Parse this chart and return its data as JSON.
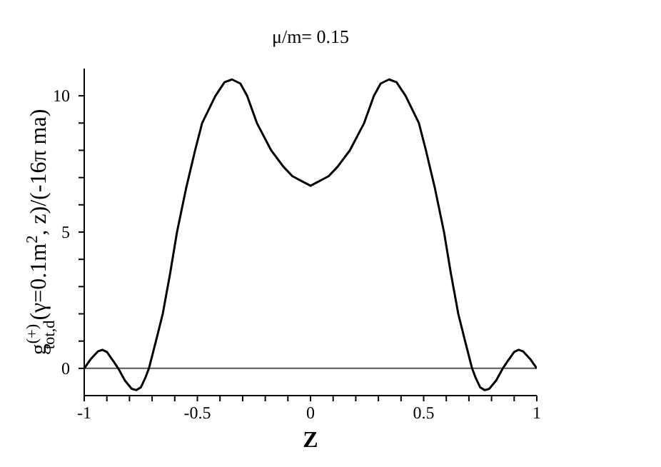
{
  "chart_data": {
    "type": "line",
    "title": "μ/m= 0.15",
    "xlabel": "Z",
    "ylabel": "g$^{(+)}$$_{tot,d}$(γ=0.1m$^{2}$, z)/(-16π ma)",
    "x": [
      -1,
      -0.97,
      -0.94,
      -0.92,
      -0.9,
      -0.87,
      -0.85,
      -0.82,
      -0.79,
      -0.77,
      -0.75,
      -0.73,
      -0.714,
      -0.683,
      -0.653,
      -0.62,
      -0.59,
      -0.55,
      -0.51,
      -0.479,
      -0.42,
      -0.38,
      -0.347,
      -0.31,
      -0.28,
      -0.237,
      -0.174,
      -0.12,
      -0.08,
      0,
      0.08,
      0.12,
      0.174,
      0.237,
      0.28,
      0.31,
      0.347,
      0.38,
      0.42,
      0.479,
      0.51,
      0.55,
      0.59,
      0.62,
      0.653,
      0.683,
      0.714,
      0.73,
      0.75,
      0.77,
      0.79,
      0.82,
      0.85,
      0.87,
      0.9,
      0.92,
      0.94,
      0.97,
      1
    ],
    "series": [
      {
        "color": "#000000",
        "values": [
          0,
          0.35,
          0.62,
          0.68,
          0.6,
          0.25,
          0,
          -0.45,
          -0.75,
          -0.8,
          -0.7,
          -0.35,
          0,
          1,
          2,
          3.5,
          5,
          6.6,
          8,
          9,
          10,
          10.5,
          10.6,
          10.45,
          10,
          9,
          8,
          7.4,
          7.05,
          6.7,
          7.05,
          7.4,
          8,
          9,
          10,
          10.45,
          10.6,
          10.5,
          10,
          9,
          8,
          6.6,
          5,
          3.5,
          2,
          1,
          0,
          -0.35,
          -0.7,
          -0.8,
          -0.75,
          -0.45,
          0,
          0.25,
          0.6,
          0.68,
          0.62,
          0.35,
          0
        ]
      }
    ],
    "xlim": [
      -1,
      1
    ],
    "ylim": [
      -1,
      11
    ],
    "xticks": [
      -1,
      {
        "value": -0.9,
        "label": null
      },
      {
        "value": -0.8,
        "label": null
      },
      {
        "value": -0.7,
        "label": null
      },
      {
        "value": -0.6,
        "label": null
      },
      -0.5,
      {
        "value": -0.4,
        "label": null
      },
      {
        "value": -0.3,
        "label": null
      },
      {
        "value": -0.2,
        "label": null
      },
      {
        "value": -0.1,
        "label": null
      },
      0,
      {
        "value": 0.1,
        "label": null
      },
      {
        "value": 0.2,
        "label": null
      },
      {
        "value": 0.3,
        "label": null
      },
      {
        "value": 0.4,
        "label": null
      },
      0.5,
      {
        "value": 0.6,
        "label": null
      },
      {
        "value": 0.7,
        "label": null
      },
      {
        "value": 0.8,
        "label": null
      },
      {
        "value": 0.9,
        "label": null
      },
      1
    ],
    "yticks": [
      0,
      {
        "value": 1,
        "label": null
      },
      {
        "value": 2,
        "label": null
      },
      {
        "value": 3,
        "label": null
      },
      {
        "value": 4,
        "label": null
      },
      5,
      {
        "value": 6,
        "label": null
      },
      {
        "value": 7,
        "label": null
      },
      {
        "value": 8,
        "label": null
      },
      {
        "value": 9,
        "label": null
      },
      10
    ],
    "ref_lines": [
      {
        "axis": "y",
        "value": 0,
        "color": "#555555"
      }
    ],
    "grid": false,
    "legend": false,
    "marker": "none",
    "line_style": "solid"
  }
}
